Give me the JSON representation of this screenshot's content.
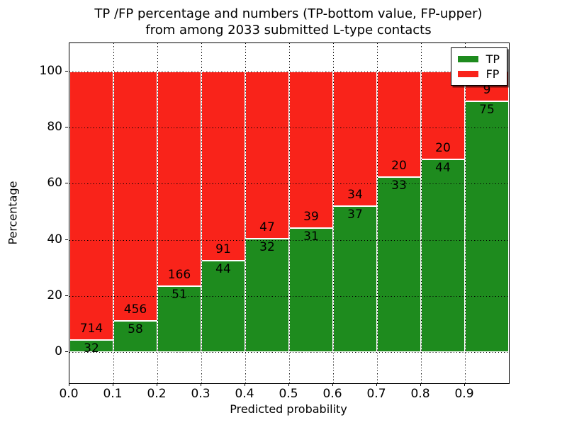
{
  "title": {
    "line1": "TP /FP percentage and numbers (TP-bottom value, FP-upper)",
    "line2": "from among 2033 submitted L-type contacts"
  },
  "axes": {
    "x_label": "Predicted probability",
    "y_label": "Percentage",
    "x_tick_labels": [
      "0.0",
      "0.1",
      "0.2",
      "0.3",
      "0.4",
      "0.5",
      "0.6",
      "0.7",
      "0.8",
      "0.9"
    ],
    "x_tick_values": [
      0.0,
      0.1,
      0.2,
      0.3,
      0.4,
      0.5,
      0.6,
      0.7,
      0.8,
      0.9
    ],
    "y_tick_labels": [
      "0",
      "20",
      "40",
      "60",
      "80",
      "100"
    ],
    "y_tick_values": [
      0,
      20,
      40,
      60,
      80,
      100
    ]
  },
  "legend": {
    "items": [
      {
        "label": "TP",
        "color": "#1e8b1e"
      },
      {
        "label": "FP",
        "color": "#f9231a"
      }
    ]
  },
  "colors": {
    "tp_green": "#1e8b1e",
    "fp_red": "#f9231a",
    "bar_edge": "#ffffff",
    "grid": "#000000",
    "background": "#ffffff",
    "text": "#000000"
  },
  "chart_data": {
    "type": "bar",
    "stacked": true,
    "normalized_to_percent_of_bin": true,
    "title": "TP /FP percentage and numbers (TP-bottom value, FP-upper) from among 2033 submitted L-type contacts",
    "xlabel": "Predicted probability",
    "ylabel": "Percentage",
    "categories": [
      "0.0-0.1",
      "0.1-0.2",
      "0.2-0.3",
      "0.3-0.4",
      "0.4-0.5",
      "0.5-0.6",
      "0.6-0.7",
      "0.7-0.8",
      "0.8-0.9",
      "0.9-1.0"
    ],
    "bin_starts": [
      0.0,
      0.1,
      0.2,
      0.3,
      0.4,
      0.5,
      0.6,
      0.7,
      0.8,
      0.9
    ],
    "bin_width": 0.1,
    "series": [
      {
        "name": "TP",
        "counts": [
          32,
          58,
          51,
          44,
          32,
          31,
          37,
          33,
          44,
          75
        ],
        "color": "#1e8b1e"
      },
      {
        "name": "FP",
        "counts": [
          714,
          456,
          166,
          91,
          47,
          39,
          34,
          20,
          20,
          9
        ],
        "color": "#f9231a"
      }
    ],
    "tp_percent_of_bin": [
      4.29,
      11.28,
      23.5,
      32.59,
      40.51,
      44.29,
      52.11,
      62.26,
      68.75,
      89.29
    ],
    "total_contacts": 2033,
    "xlim": [
      0.0,
      1.0
    ],
    "ylim": [
      -11,
      110
    ],
    "grid": "dotted-black-above-bars",
    "legend_position": "upper right"
  }
}
